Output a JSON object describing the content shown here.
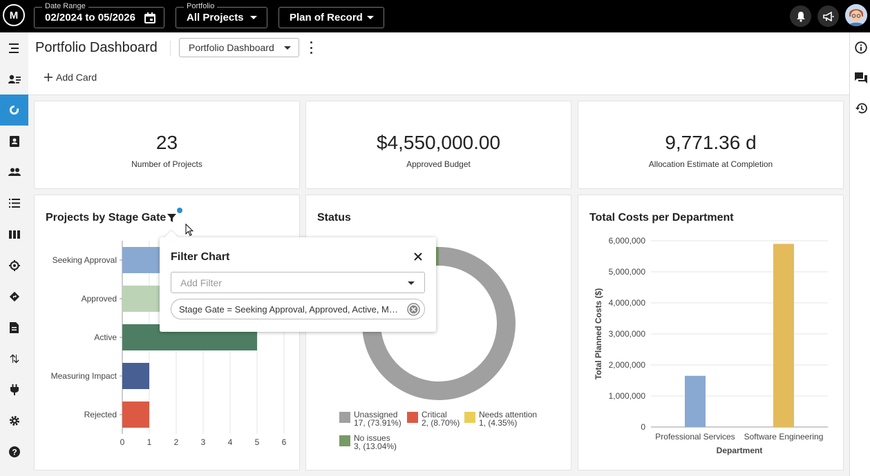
{
  "topbar": {
    "logo": "M",
    "date_range": {
      "label": "Date Range",
      "value": "02/2024 to 05/2026"
    },
    "portfolio": {
      "label": "Portfolio",
      "value": "All Projects"
    },
    "plan": {
      "value": "Plan of Record"
    }
  },
  "header": {
    "title": "Portfolio Dashboard",
    "dashboard_select": "Portfolio Dashboard",
    "add_card": "Add Card"
  },
  "kpis": [
    {
      "value": "23",
      "label": "Number of Projects"
    },
    {
      "value": "$4,550,000.00",
      "label": "Approved Budget"
    },
    {
      "value": "9,771.36 d",
      "label": "Allocation Estimate at Completion"
    }
  ],
  "stage_card": {
    "title": "Projects by Stage Gate"
  },
  "status_card": {
    "title": "Status"
  },
  "cost_card": {
    "title": "Total Costs per Department"
  },
  "filter_popover": {
    "title": "Filter Chart",
    "placeholder": "Add Filter",
    "chip": "Stage Gate = Seeking Approval, Approved, Active, Measuring Impact, Rejected"
  },
  "chart_data": [
    {
      "type": "bar",
      "orientation": "horizontal",
      "title": "Projects by Stage Gate",
      "categories": [
        "Seeking Approval",
        "Approved",
        "Active",
        "Measuring Impact",
        "Rejected"
      ],
      "values": [
        3,
        3,
        5,
        1,
        1
      ],
      "colors": [
        "#89a9d2",
        "#bdd3b6",
        "#4d7e64",
        "#475f92",
        "#dc5a43"
      ],
      "xlim": [
        0,
        6
      ],
      "xticks": [
        "0",
        "1",
        "2",
        "3",
        "4",
        "5",
        "6"
      ]
    },
    {
      "type": "pie",
      "title": "Status",
      "donut": true,
      "slices": [
        {
          "name": "Unassigned",
          "value": 17,
          "label": "17, (73.91%)",
          "color": "#a0a0a0"
        },
        {
          "name": "Critical",
          "value": 2,
          "label": "2, (8.70%)",
          "color": "#dc5a43"
        },
        {
          "name": "Needs attention",
          "value": 1,
          "label": "1, (4.35%)",
          "color": "#e9cf58"
        },
        {
          "name": "No issues",
          "value": 3,
          "label": "3, (13.04%)",
          "color": "#789a66"
        }
      ]
    },
    {
      "type": "bar",
      "title": "Total Costs per Department",
      "categories": [
        "Professional Services",
        "Software Engineering"
      ],
      "values": [
        1650000,
        5900000
      ],
      "colors": [
        "#89a9d2",
        "#e4bb5b"
      ],
      "ylim": [
        0,
        6000000
      ],
      "yticks": [
        "0",
        "1,000,000",
        "2,000,000",
        "3,000,000",
        "4,000,000",
        "5,000,000",
        "6,000,000"
      ],
      "xlabel": "Department",
      "ylabel": "Total Planned Costs ($)"
    }
  ]
}
